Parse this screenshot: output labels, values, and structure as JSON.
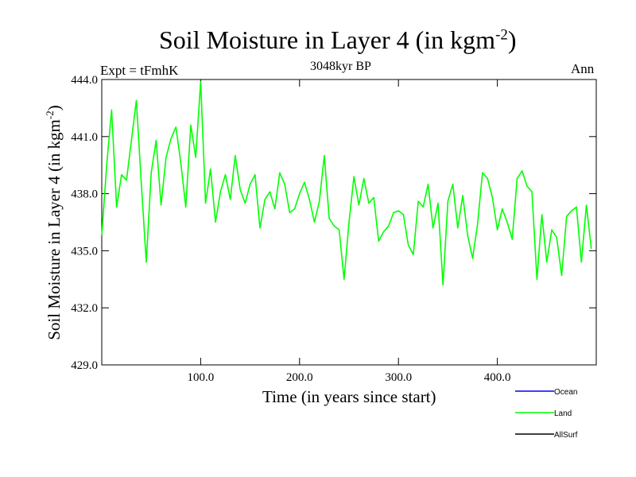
{
  "chart_data": {
    "type": "line",
    "title": "Soil Moisture in Layer 4 (in kgm",
    "title_exp": "-2",
    "subtitle": "3048kyr BP",
    "left_label": "Expt = tFmhK",
    "right_label": "Ann",
    "xlabel": "Time (in years since start)",
    "ylabel": "Soil Moisture in Layer 4 (in kgm",
    "ylabel_exp": "-2",
    "xlim": [
      0,
      500
    ],
    "ylim": [
      429,
      444
    ],
    "x_ticks": [
      100,
      200,
      300,
      400
    ],
    "x_tick_labels": [
      "100.0",
      "200.0",
      "300.0",
      "400.0"
    ],
    "y_ticks": [
      429,
      432,
      435,
      438,
      441,
      444
    ],
    "y_tick_labels": [
      "429.0",
      "432.0",
      "435.0",
      "438.0",
      "441.0",
      "444.0"
    ],
    "legend": [
      {
        "name": "Ocean",
        "color": "#0000ff"
      },
      {
        "name": "Land",
        "color": "#00ff00"
      },
      {
        "name": "AllSurf",
        "color": "#000000"
      }
    ],
    "series": [
      {
        "name": "Land",
        "color": "#00ff00",
        "x_start": 0,
        "x_step": 5,
        "values": [
          435.8,
          439.5,
          442.4,
          437.3,
          439.0,
          438.7,
          440.8,
          442.9,
          438.5,
          434.4,
          439.1,
          440.8,
          437.4,
          439.9,
          440.9,
          441.5,
          439.6,
          437.3,
          441.6,
          439.9,
          443.9,
          437.5,
          439.3,
          436.5,
          438.1,
          439.0,
          437.7,
          440.0,
          438.2,
          437.5,
          438.5,
          439.0,
          436.2,
          437.7,
          438.1,
          437.2,
          439.1,
          438.5,
          437.0,
          437.2,
          438.0,
          438.6,
          437.7,
          436.5,
          437.6,
          440.0,
          436.7,
          436.3,
          436.1,
          433.5,
          436.5,
          438.9,
          437.4,
          438.8,
          437.5,
          437.8,
          435.5,
          436.0,
          436.3,
          437.0,
          437.1,
          436.9,
          435.3,
          434.8,
          437.6,
          437.3,
          438.5,
          436.2,
          437.5,
          433.2,
          437.6,
          438.5,
          436.2,
          437.9,
          435.8,
          434.6,
          436.4,
          439.1,
          438.8,
          437.8,
          436.1,
          437.2,
          436.5,
          435.6,
          438.8,
          439.2,
          438.4,
          438.1,
          433.5,
          436.9,
          434.4,
          436.1,
          435.7,
          433.7,
          436.8,
          437.1,
          437.3,
          434.4,
          437.4,
          435.1
        ]
      }
    ]
  }
}
